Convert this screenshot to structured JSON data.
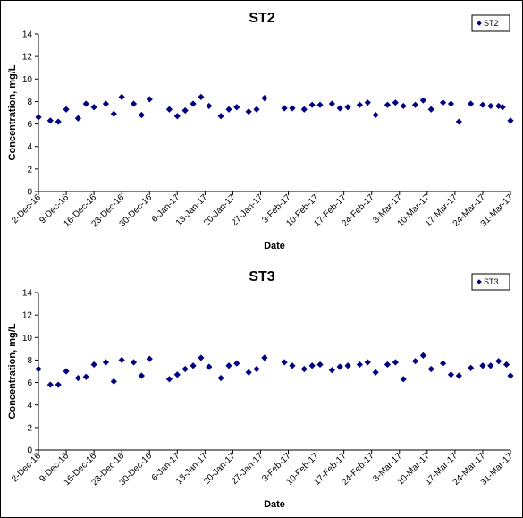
{
  "chart_data": [
    {
      "type": "scatter",
      "title": "ST2",
      "xlabel": "Date",
      "ylabel": "Concentration, mg/L",
      "ylim": [
        0,
        14
      ],
      "yticks": [
        0,
        2,
        4,
        6,
        8,
        10,
        12,
        14
      ],
      "xlim": [
        "2016-12-02",
        "2017-03-31"
      ],
      "xticks": [
        "2-Dec-16",
        "9-Dec-16",
        "16-Dec-16",
        "23-Dec-16",
        "30-Dec-16",
        "6-Jan-17",
        "13-Jan-17",
        "20-Jan-17",
        "27-Jan-17",
        "3-Feb-17",
        "10-Feb-17",
        "17-Feb-17",
        "24-Feb-17",
        "3-Mar-17",
        "10-Mar-17",
        "17-Mar-17",
        "24-Mar-17",
        "31-Mar-17"
      ],
      "grid": false,
      "legend": "top-right",
      "marker_color": "#000080",
      "series": [
        {
          "name": "ST2",
          "points": [
            [
              "2016-12-02",
              6.6
            ],
            [
              "2016-12-05",
              6.3
            ],
            [
              "2016-12-07",
              6.2
            ],
            [
              "2016-12-09",
              7.3
            ],
            [
              "2016-12-12",
              6.5
            ],
            [
              "2016-12-14",
              7.8
            ],
            [
              "2016-12-16",
              7.5
            ],
            [
              "2016-12-19",
              7.8
            ],
            [
              "2016-12-21",
              6.9
            ],
            [
              "2016-12-23",
              8.4
            ],
            [
              "2016-12-26",
              7.8
            ],
            [
              "2016-12-28",
              6.8
            ],
            [
              "2016-12-30",
              8.2
            ],
            [
              "2017-01-04",
              7.3
            ],
            [
              "2017-01-06",
              6.7
            ],
            [
              "2017-01-08",
              7.2
            ],
            [
              "2017-01-10",
              7.8
            ],
            [
              "2017-01-12",
              8.4
            ],
            [
              "2017-01-14",
              7.6
            ],
            [
              "2017-01-17",
              6.7
            ],
            [
              "2017-01-19",
              7.3
            ],
            [
              "2017-01-21",
              7.5
            ],
            [
              "2017-01-24",
              7.1
            ],
            [
              "2017-01-26",
              7.3
            ],
            [
              "2017-01-28",
              8.3
            ],
            [
              "2017-02-02",
              7.4
            ],
            [
              "2017-02-04",
              7.4
            ],
            [
              "2017-02-07",
              7.3
            ],
            [
              "2017-02-09",
              7.7
            ],
            [
              "2017-02-11",
              7.7
            ],
            [
              "2017-02-14",
              7.8
            ],
            [
              "2017-02-16",
              7.4
            ],
            [
              "2017-02-18",
              7.5
            ],
            [
              "2017-02-21",
              7.7
            ],
            [
              "2017-02-23",
              7.9
            ],
            [
              "2017-02-25",
              6.8
            ],
            [
              "2017-02-28",
              7.7
            ],
            [
              "2017-03-02",
              7.9
            ],
            [
              "2017-03-04",
              7.6
            ],
            [
              "2017-03-07",
              7.7
            ],
            [
              "2017-03-09",
              8.1
            ],
            [
              "2017-03-11",
              7.3
            ],
            [
              "2017-03-14",
              7.9
            ],
            [
              "2017-03-16",
              7.8
            ],
            [
              "2017-03-18",
              6.2
            ],
            [
              "2017-03-21",
              7.8
            ],
            [
              "2017-03-24",
              7.7
            ],
            [
              "2017-03-26",
              7.6
            ],
            [
              "2017-03-28",
              7.6
            ],
            [
              "2017-03-29",
              7.5
            ],
            [
              "2017-03-31",
              6.3
            ]
          ]
        }
      ]
    },
    {
      "type": "scatter",
      "title": "ST3",
      "xlabel": "Date",
      "ylabel": "Concentration, mg/L",
      "ylim": [
        0,
        14
      ],
      "yticks": [
        0,
        2,
        4,
        6,
        8,
        10,
        12,
        14
      ],
      "xlim": [
        "2016-12-02",
        "2017-03-31"
      ],
      "xticks": [
        "2-Dec-16",
        "9-Dec-16",
        "16-Dec-16",
        "23-Dec-16",
        "30-Dec-16",
        "6-Jan-17",
        "13-Jan-17",
        "20-Jan-17",
        "27-Jan-17",
        "3-Feb-17",
        "10-Feb-17",
        "17-Feb-17",
        "24-Feb-17",
        "3-Mar-17",
        "10-Mar-17",
        "17-Mar-17",
        "24-Mar-17",
        "31-Mar-17"
      ],
      "grid": false,
      "legend": "top-right",
      "marker_color": "#000080",
      "series": [
        {
          "name": "ST3",
          "points": [
            [
              "2016-12-02",
              7.2
            ],
            [
              "2016-12-05",
              5.8
            ],
            [
              "2016-12-07",
              5.8
            ],
            [
              "2016-12-09",
              7.0
            ],
            [
              "2016-12-12",
              6.4
            ],
            [
              "2016-12-14",
              6.5
            ],
            [
              "2016-12-16",
              7.6
            ],
            [
              "2016-12-19",
              7.8
            ],
            [
              "2016-12-21",
              6.1
            ],
            [
              "2016-12-23",
              8.0
            ],
            [
              "2016-12-26",
              7.8
            ],
            [
              "2016-12-28",
              6.6
            ],
            [
              "2016-12-30",
              8.1
            ],
            [
              "2017-01-04",
              6.3
            ],
            [
              "2017-01-06",
              6.7
            ],
            [
              "2017-01-08",
              7.2
            ],
            [
              "2017-01-10",
              7.5
            ],
            [
              "2017-01-12",
              8.2
            ],
            [
              "2017-01-14",
              7.4
            ],
            [
              "2017-01-17",
              6.4
            ],
            [
              "2017-01-19",
              7.5
            ],
            [
              "2017-01-21",
              7.7
            ],
            [
              "2017-01-24",
              6.9
            ],
            [
              "2017-01-26",
              7.2
            ],
            [
              "2017-01-28",
              8.2
            ],
            [
              "2017-02-02",
              7.8
            ],
            [
              "2017-02-04",
              7.5
            ],
            [
              "2017-02-07",
              7.2
            ],
            [
              "2017-02-09",
              7.5
            ],
            [
              "2017-02-11",
              7.6
            ],
            [
              "2017-02-14",
              7.1
            ],
            [
              "2017-02-16",
              7.4
            ],
            [
              "2017-02-18",
              7.5
            ],
            [
              "2017-02-21",
              7.6
            ],
            [
              "2017-02-23",
              7.8
            ],
            [
              "2017-02-25",
              6.9
            ],
            [
              "2017-02-28",
              7.6
            ],
            [
              "2017-03-02",
              7.8
            ],
            [
              "2017-03-04",
              6.3
            ],
            [
              "2017-03-07",
              7.9
            ],
            [
              "2017-03-09",
              8.4
            ],
            [
              "2017-03-11",
              7.2
            ],
            [
              "2017-03-14",
              7.7
            ],
            [
              "2017-03-16",
              6.7
            ],
            [
              "2017-03-18",
              6.6
            ],
            [
              "2017-03-21",
              7.3
            ],
            [
              "2017-03-24",
              7.5
            ],
            [
              "2017-03-26",
              7.5
            ],
            [
              "2017-03-28",
              7.9
            ],
            [
              "2017-03-30",
              7.6
            ],
            [
              "2017-03-31",
              6.6
            ]
          ]
        }
      ]
    }
  ]
}
